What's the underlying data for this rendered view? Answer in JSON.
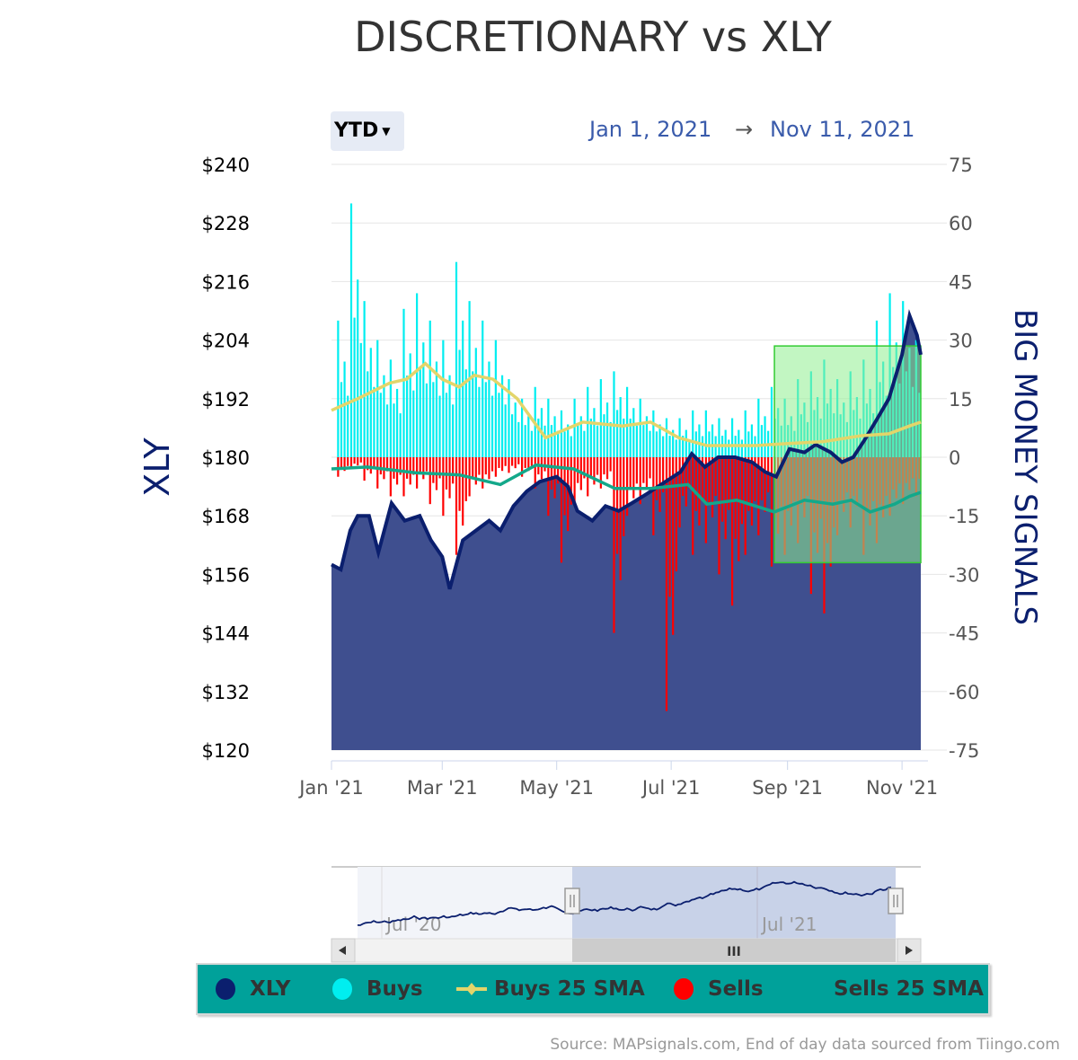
{
  "title": "DISCRETIONARY vs XLY",
  "range_selector": {
    "selected": "YTD",
    "from": "Jan 1, 2021",
    "arrow": "→",
    "to": "Nov 11, 2021"
  },
  "legend": [
    {
      "label": "XLY",
      "color": "#0b1f6e",
      "symbol": "circle"
    },
    {
      "label": "Buys",
      "color": "#00eef0",
      "symbol": "circle"
    },
    {
      "label": "Buys 25 SMA",
      "color": "#e3d56a",
      "symbol": "line-diamond"
    },
    {
      "label": "Sells",
      "color": "#ff0000",
      "symbol": "circle"
    },
    {
      "label": "Sells 25 SMA",
      "color": "#13a88a",
      "symbol": "none"
    }
  ],
  "source": "Source: MAPsignals.com, End of day data sourced from Tiingo.com",
  "navigator": {
    "labels": [
      "Jul '20",
      "Jul '21"
    ],
    "scroll_grip": "III"
  },
  "chart_data": {
    "type": "line",
    "title": "DISCRETIONARY vs XLY",
    "x_range": [
      "2021-01-01",
      "2021-11-11"
    ],
    "x_ticks": [
      {
        "date": "2021-01-01",
        "label": "Jan '21"
      },
      {
        "date": "2021-03-01",
        "label": "Mar '21"
      },
      {
        "date": "2021-05-01",
        "label": "May '21"
      },
      {
        "date": "2021-07-01",
        "label": "Jul '21"
      },
      {
        "date": "2021-09-01",
        "label": "Sep '21"
      },
      {
        "date": "2021-11-01",
        "label": "Nov '21"
      }
    ],
    "y_left": {
      "title": "XLY",
      "range": [
        120,
        240
      ],
      "ticks": [
        "$240",
        "$228",
        "$216",
        "$204",
        "$192",
        "$180",
        "$168",
        "$156",
        "$144",
        "$132",
        "$120"
      ]
    },
    "y_right": {
      "title": "BIG MONEY SIGNALS",
      "range": [
        -75,
        75
      ],
      "ticks": [
        "75",
        "60",
        "45",
        "30",
        "15",
        "0",
        "-15",
        "-30",
        "-45",
        "-60",
        "-75"
      ]
    },
    "grid": true,
    "legend_placement": "bottom",
    "plot_band": {
      "from": "2021-08-25",
      "to": "2021-11-11",
      "y_from": 28.5,
      "y_to": -27,
      "color": "#90ee90"
    },
    "series": [
      {
        "name": "XLY",
        "type": "area",
        "axis": "left",
        "color": "#0b1f6e",
        "fill": "#3f4f8f",
        "points": [
          [
            "2021-01-01",
            158
          ],
          [
            "2021-01-06",
            157
          ],
          [
            "2021-01-11",
            165
          ],
          [
            "2021-01-15",
            168
          ],
          [
            "2021-01-21",
            168
          ],
          [
            "2021-01-26",
            160.5
          ],
          [
            "2021-02-02",
            170.6
          ],
          [
            "2021-02-09",
            167
          ],
          [
            "2021-02-17",
            168
          ],
          [
            "2021-02-23",
            163
          ],
          [
            "2021-03-01",
            159.6
          ],
          [
            "2021-03-05",
            153
          ],
          [
            "2021-03-12",
            163
          ],
          [
            "2021-03-19",
            165
          ],
          [
            "2021-03-26",
            167
          ],
          [
            "2021-04-01",
            165
          ],
          [
            "2021-04-08",
            170
          ],
          [
            "2021-04-15",
            173
          ],
          [
            "2021-04-22",
            175
          ],
          [
            "2021-05-01",
            176
          ],
          [
            "2021-05-07",
            174
          ],
          [
            "2021-05-12",
            169
          ],
          [
            "2021-05-20",
            167
          ],
          [
            "2021-05-27",
            170
          ],
          [
            "2021-06-03",
            169
          ],
          [
            "2021-06-10",
            170.6
          ],
          [
            "2021-06-18",
            172.5
          ],
          [
            "2021-06-28",
            175
          ],
          [
            "2021-07-06",
            177
          ],
          [
            "2021-07-12",
            180.7
          ],
          [
            "2021-07-19",
            178
          ],
          [
            "2021-07-26",
            180
          ],
          [
            "2021-08-04",
            180
          ],
          [
            "2021-08-13",
            179
          ],
          [
            "2021-08-20",
            177
          ],
          [
            "2021-08-26",
            176
          ],
          [
            "2021-09-02",
            181.7
          ],
          [
            "2021-09-10",
            181
          ],
          [
            "2021-09-16",
            182.6
          ],
          [
            "2021-09-24",
            181
          ],
          [
            "2021-09-30",
            179
          ],
          [
            "2021-10-06",
            180
          ],
          [
            "2021-10-12",
            183.5
          ],
          [
            "2021-10-19",
            188
          ],
          [
            "2021-10-25",
            192
          ],
          [
            "2021-11-01",
            201
          ],
          [
            "2021-11-05",
            209
          ],
          [
            "2021-11-09",
            205
          ],
          [
            "2021-11-11",
            201
          ]
        ]
      },
      {
        "name": "Buys",
        "type": "column",
        "axis": "right",
        "color": "#00eef0",
        "start": "2021-01-04",
        "step_days": 7,
        "values": [
          35,
          65,
          40,
          30,
          25,
          38,
          42,
          35,
          30,
          50,
          40,
          35,
          30,
          20,
          15,
          18,
          15,
          12,
          15,
          18,
          20,
          22,
          18,
          15,
          12,
          10,
          10,
          12,
          12,
          10,
          10,
          12,
          15,
          18,
          15,
          20,
          22,
          25,
          20,
          22,
          25,
          35,
          42,
          40,
          30
        ]
      },
      {
        "name": "Sells",
        "type": "column",
        "axis": "right",
        "color": "#ff0000",
        "start": "2021-01-04",
        "step_days": 7,
        "values": [
          -5,
          -3,
          -6,
          -8,
          -10,
          -10,
          -8,
          -12,
          -15,
          -25,
          -10,
          -8,
          -5,
          -4,
          -5,
          -8,
          -15,
          -27,
          -12,
          -10,
          -8,
          -45,
          -15,
          -12,
          -20,
          -65,
          -18,
          -25,
          -22,
          -30,
          -38,
          -25,
          -20,
          -28,
          -25,
          -22,
          -35,
          -40,
          -20,
          -18,
          -25,
          -22,
          -15,
          -12,
          -10
        ]
      },
      {
        "name": "Buys 25 SMA",
        "type": "line",
        "axis": "right",
        "color": "#e3d56a",
        "points": [
          [
            "2021-01-01",
            12
          ],
          [
            "2021-01-15",
            15
          ],
          [
            "2021-02-01",
            19
          ],
          [
            "2021-02-10",
            20
          ],
          [
            "2021-02-20",
            24
          ],
          [
            "2021-03-01",
            20
          ],
          [
            "2021-03-10",
            18
          ],
          [
            "2021-03-18",
            21
          ],
          [
            "2021-03-28",
            20
          ],
          [
            "2021-04-10",
            15
          ],
          [
            "2021-04-25",
            5
          ],
          [
            "2021-05-15",
            9
          ],
          [
            "2021-06-05",
            8
          ],
          [
            "2021-06-20",
            9
          ],
          [
            "2021-07-05",
            5
          ],
          [
            "2021-07-20",
            3
          ],
          [
            "2021-08-15",
            3
          ],
          [
            "2021-09-01",
            3.5
          ],
          [
            "2021-09-20",
            4
          ],
          [
            "2021-10-10",
            5.5
          ],
          [
            "2021-10-25",
            6
          ],
          [
            "2021-11-05",
            8
          ],
          [
            "2021-11-11",
            9
          ]
        ]
      },
      {
        "name": "Sells 25 SMA",
        "type": "line",
        "axis": "right",
        "color": "#13a88a",
        "points": [
          [
            "2021-01-01",
            -3
          ],
          [
            "2021-01-20",
            -2.5
          ],
          [
            "2021-02-15",
            -4
          ],
          [
            "2021-03-10",
            -4.5
          ],
          [
            "2021-04-01",
            -7
          ],
          [
            "2021-04-20",
            -2
          ],
          [
            "2021-05-10",
            -3
          ],
          [
            "2021-06-01",
            -8
          ],
          [
            "2021-06-20",
            -8
          ],
          [
            "2021-07-10",
            -7
          ],
          [
            "2021-07-20",
            -12
          ],
          [
            "2021-08-05",
            -11
          ],
          [
            "2021-08-25",
            -14
          ],
          [
            "2021-09-10",
            -11
          ],
          [
            "2021-09-25",
            -12
          ],
          [
            "2021-10-05",
            -11
          ],
          [
            "2021-10-15",
            -14
          ],
          [
            "2021-10-28",
            -12
          ],
          [
            "2021-11-05",
            -10
          ],
          [
            "2021-11-11",
            -9
          ]
        ]
      }
    ]
  }
}
